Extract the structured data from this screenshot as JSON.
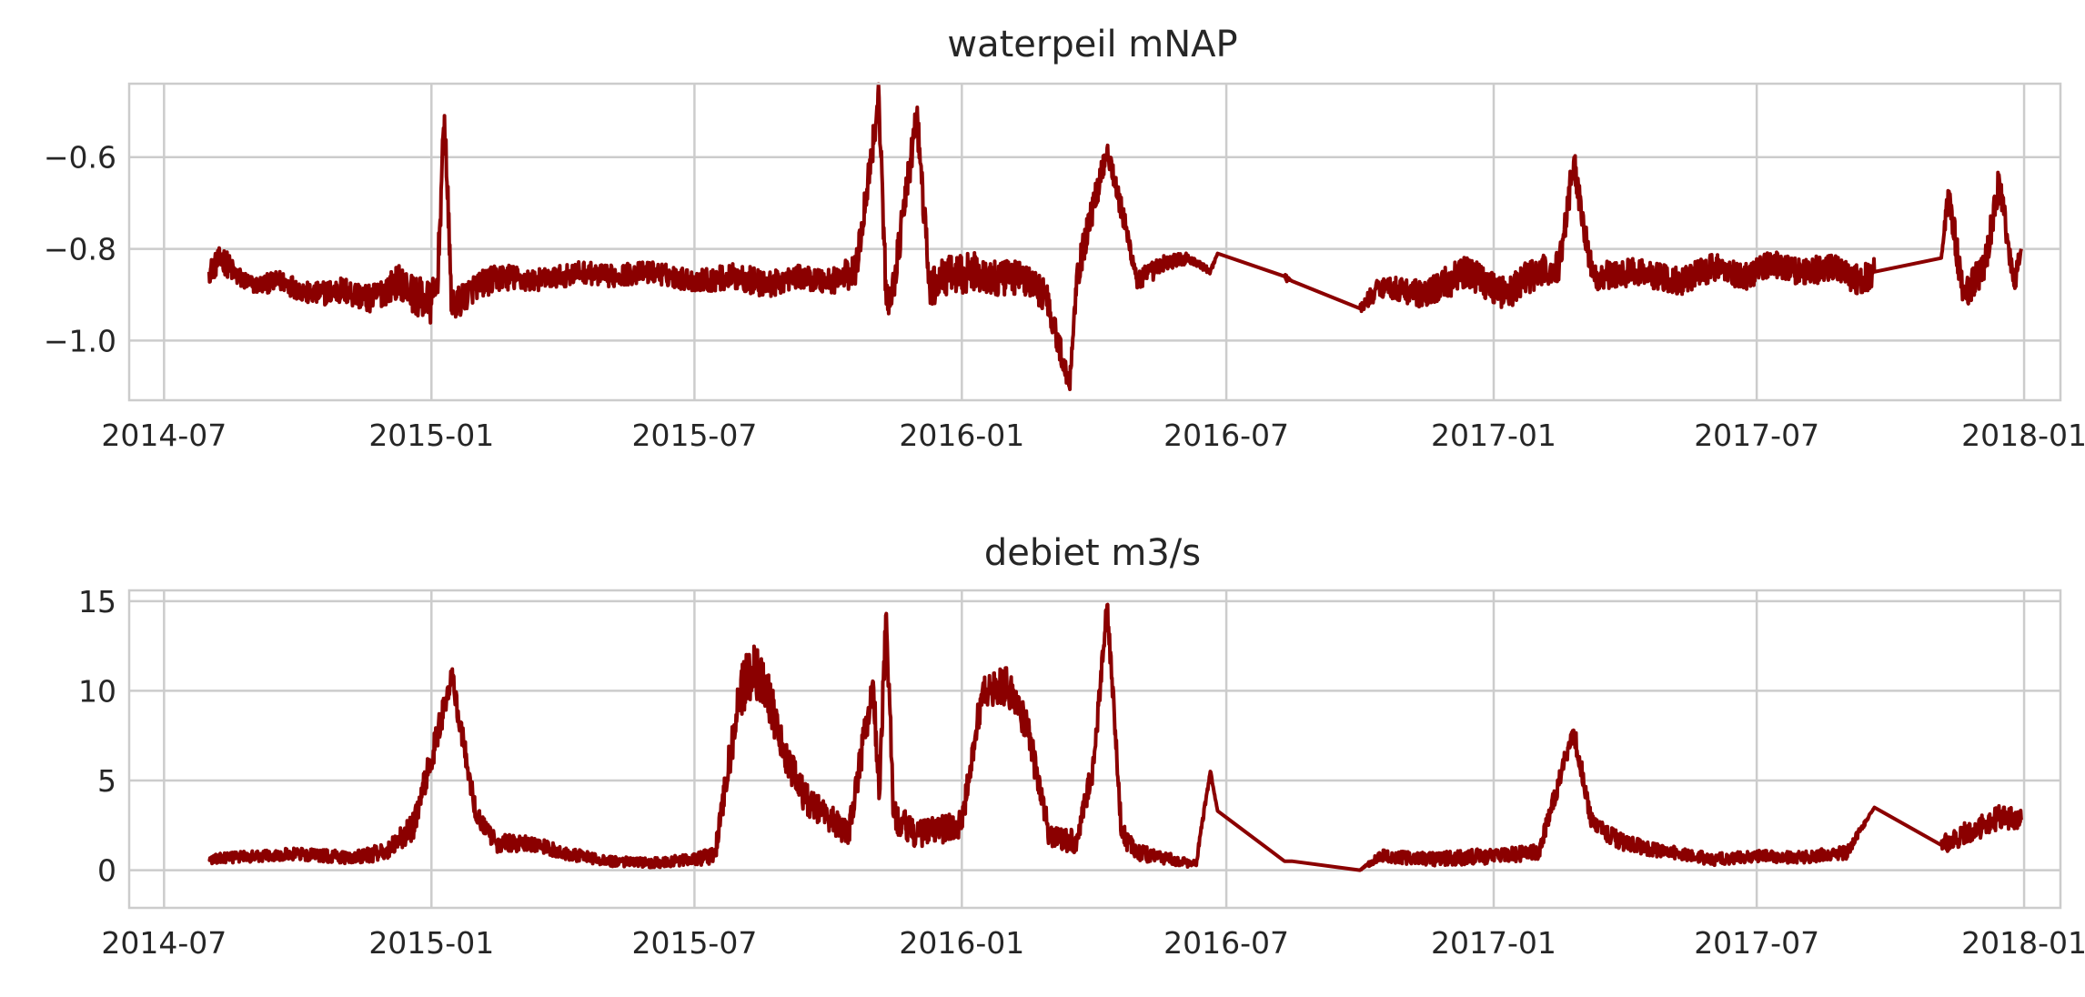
{
  "chart_data": [
    {
      "type": "line",
      "title": "waterpeil mNAP",
      "xlabel": "",
      "ylabel": "",
      "x_tick_labels": [
        "2014-07",
        "2015-01",
        "2015-07",
        "2016-01",
        "2016-07",
        "2017-01",
        "2017-07",
        "2018-01"
      ],
      "y_ticks": [
        -1.0,
        -0.8,
        -0.6
      ],
      "y_tick_labels": [
        "−1.0",
        "−0.8",
        "−0.6"
      ],
      "xlim": [
        "2014-06-07",
        "2018-01-26"
      ],
      "ylim": [
        -1.13,
        -0.44
      ],
      "grid": true,
      "line_color": "#8b0000",
      "series": [
        {
          "x": [
            "2014-08-01",
            "2014-08-10",
            "2014-08-20",
            "2014-09-01",
            "2014-09-20",
            "2014-10-10",
            "2014-11-01",
            "2014-11-20",
            "2014-12-10",
            "2014-12-20",
            "2015-01-01",
            "2015-01-05",
            "2015-01-10",
            "2015-01-15",
            "2015-02-01",
            "2015-02-20",
            "2015-03-10",
            "2015-04-01",
            "2015-04-15",
            "2015-05-01",
            "2015-06-01",
            "2015-07-01",
            "2015-08-01",
            "2015-08-20",
            "2015-09-10",
            "2015-10-01",
            "2015-10-20",
            "2015-11-05",
            "2015-11-10",
            "2015-11-15",
            "2015-12-01",
            "2015-12-10",
            "2015-12-20",
            "2016-01-10",
            "2016-01-25",
            "2016-02-10",
            "2016-02-28",
            "2016-03-15",
            "2016-03-20",
            "2016-04-10",
            "2016-05-01",
            "2016-05-20",
            "2016-06-05",
            "2016-06-20",
            "2016-06-25",
            "2016-08-10",
            "2016-08-15",
            "2016-10-01",
            "2016-10-15",
            "2016-11-15",
            "2016-12-01",
            "2016-12-15",
            "2017-01-10",
            "2017-01-25",
            "2017-02-15",
            "2017-02-25",
            "2017-03-10",
            "2017-04-10",
            "2017-05-10",
            "2017-06-01",
            "2017-06-25",
            "2017-07-10",
            "2017-08-01",
            "2017-08-25",
            "2017-09-10",
            "2017-09-20",
            "2017-11-05",
            "2017-11-10",
            "2017-11-20",
            "2017-12-05",
            "2017-12-15",
            "2017-12-25",
            "2017-12-30"
          ],
          "y": [
            -0.85,
            -0.82,
            -0.86,
            -0.88,
            -0.87,
            -0.9,
            -0.89,
            -0.91,
            -0.87,
            -0.9,
            -0.92,
            -0.88,
            -0.51,
            -0.93,
            -0.88,
            -0.86,
            -0.87,
            -0.86,
            -0.85,
            -0.86,
            -0.85,
            -0.87,
            -0.86,
            -0.88,
            -0.86,
            -0.87,
            -0.85,
            -0.47,
            -0.92,
            -0.88,
            -0.51,
            -0.89,
            -0.86,
            -0.85,
            -0.87,
            -0.86,
            -0.9,
            -1.1,
            -0.86,
            -0.58,
            -0.87,
            -0.83,
            -0.82,
            -0.85,
            -0.81,
            -0.86,
            -0.87,
            -0.93,
            -0.88,
            -0.9,
            -0.87,
            -0.85,
            -0.9,
            -0.86,
            -0.84,
            -0.61,
            -0.86,
            -0.85,
            -0.87,
            -0.84,
            -0.86,
            -0.83,
            -0.85,
            -0.84,
            -0.87,
            -0.85,
            -0.82,
            -0.68,
            -0.9,
            -0.84,
            -0.65,
            -0.88,
            -0.8
          ],
          "spread": [
            0.04,
            0.05,
            0.04,
            0.03,
            0.04,
            0.04,
            0.05,
            0.05,
            0.06,
            0.07,
            0.08,
            0.07,
            0.08,
            0.06,
            0.05,
            0.05,
            0.04,
            0.04,
            0.04,
            0.04,
            0.04,
            0.04,
            0.05,
            0.05,
            0.04,
            0.05,
            0.06,
            0.07,
            0.07,
            0.06,
            0.07,
            0.07,
            0.07,
            0.07,
            0.07,
            0.06,
            0.06,
            0.04,
            0.06,
            0.05,
            0.04,
            0.03,
            0.02,
            0.01,
            0.0,
            0.02,
            0.0,
            0.02,
            0.04,
            0.05,
            0.06,
            0.06,
            0.06,
            0.06,
            0.06,
            0.06,
            0.05,
            0.05,
            0.05,
            0.05,
            0.05,
            0.05,
            0.05,
            0.05,
            0.06,
            0.05,
            0.0,
            0.06,
            0.06,
            0.06,
            0.06,
            0.05,
            0.04
          ]
        }
      ]
    },
    {
      "type": "line",
      "title": "debiet m3/s",
      "xlabel": "",
      "ylabel": "",
      "x_tick_labels": [
        "2014-07",
        "2015-01",
        "2015-07",
        "2016-01",
        "2016-07",
        "2017-01",
        "2017-07",
        "2018-01"
      ],
      "y_ticks": [
        0,
        5,
        10,
        15
      ],
      "y_tick_labels": [
        "0",
        "5",
        "10",
        "15"
      ],
      "xlim": [
        "2014-06-07",
        "2018-01-26"
      ],
      "ylim": [
        -2.1,
        15.6
      ],
      "grid": true,
      "line_color": "#8b0000",
      "series": [
        {
          "x": [
            "2014-08-01",
            "2014-09-01",
            "2014-10-01",
            "2014-11-01",
            "2014-12-01",
            "2014-12-20",
            "2015-01-05",
            "2015-01-15",
            "2015-02-01",
            "2015-02-15",
            "2015-03-10",
            "2015-04-01",
            "2015-05-01",
            "2015-06-01",
            "2015-07-01",
            "2015-07-15",
            "2015-08-01",
            "2015-08-10",
            "2015-08-20",
            "2015-09-01",
            "2015-09-15",
            "2015-10-01",
            "2015-10-15",
            "2015-11-01",
            "2015-11-05",
            "2015-11-10",
            "2015-11-15",
            "2015-12-01",
            "2016-01-01",
            "2016-01-15",
            "2016-02-01",
            "2016-02-15",
            "2016-03-01",
            "2016-03-20",
            "2016-04-01",
            "2016-04-10",
            "2016-04-20",
            "2016-05-01",
            "2016-06-01",
            "2016-06-10",
            "2016-06-20",
            "2016-06-25",
            "2016-08-10",
            "2016-08-15",
            "2016-10-01",
            "2016-10-15",
            "2016-11-15",
            "2017-01-01",
            "2017-02-01",
            "2017-02-25",
            "2017-03-10",
            "2017-04-01",
            "2017-05-01",
            "2017-06-01",
            "2017-07-01",
            "2017-08-01",
            "2017-09-01",
            "2017-09-20",
            "2017-11-05",
            "2017-11-20",
            "2017-12-05",
            "2017-12-15",
            "2017-12-30"
          ],
          "y": [
            0.6,
            0.8,
            0.9,
            0.7,
            1.0,
            2.5,
            7.5,
            10.8,
            3.0,
            1.5,
            1.5,
            1.0,
            0.5,
            0.4,
            0.6,
            0.8,
            9.8,
            11.3,
            10.0,
            6.5,
            4.0,
            3.0,
            2.0,
            10.5,
            4.0,
            14.3,
            3.0,
            2.0,
            2.5,
            9.9,
            10.3,
            8.0,
            2.0,
            1.5,
            6.0,
            14.8,
            2.0,
            1.0,
            0.5,
            0.3,
            5.5,
            3.3,
            0.5,
            0.5,
            0.0,
            0.8,
            0.6,
            0.8,
            1.0,
            7.8,
            2.5,
            1.5,
            1.0,
            0.6,
            0.8,
            0.7,
            1.0,
            3.5,
            1.4,
            2.0,
            2.5,
            3.0,
            2.8
          ],
          "spread": [
            0.5,
            0.6,
            0.6,
            0.7,
            0.9,
            1.4,
            1.5,
            1.4,
            1.0,
            0.9,
            0.8,
            0.7,
            0.5,
            0.5,
            0.6,
            1.0,
            2.6,
            2.8,
            2.4,
            1.8,
            1.6,
            1.4,
            1.3,
            2.0,
            1.8,
            2.2,
            1.6,
            1.4,
            1.5,
            1.8,
            1.9,
            1.7,
            1.3,
            1.2,
            1.4,
            1.4,
            1.2,
            0.9,
            0.5,
            0.4,
            0.3,
            0.0,
            0.0,
            0.0,
            0.0,
            0.6,
            0.7,
            0.8,
            0.8,
            1.2,
            1.0,
            0.8,
            0.7,
            0.6,
            0.6,
            0.6,
            0.7,
            0.0,
            0.9,
            1.1,
            1.2,
            1.2,
            1.1
          ]
        }
      ]
    }
  ]
}
